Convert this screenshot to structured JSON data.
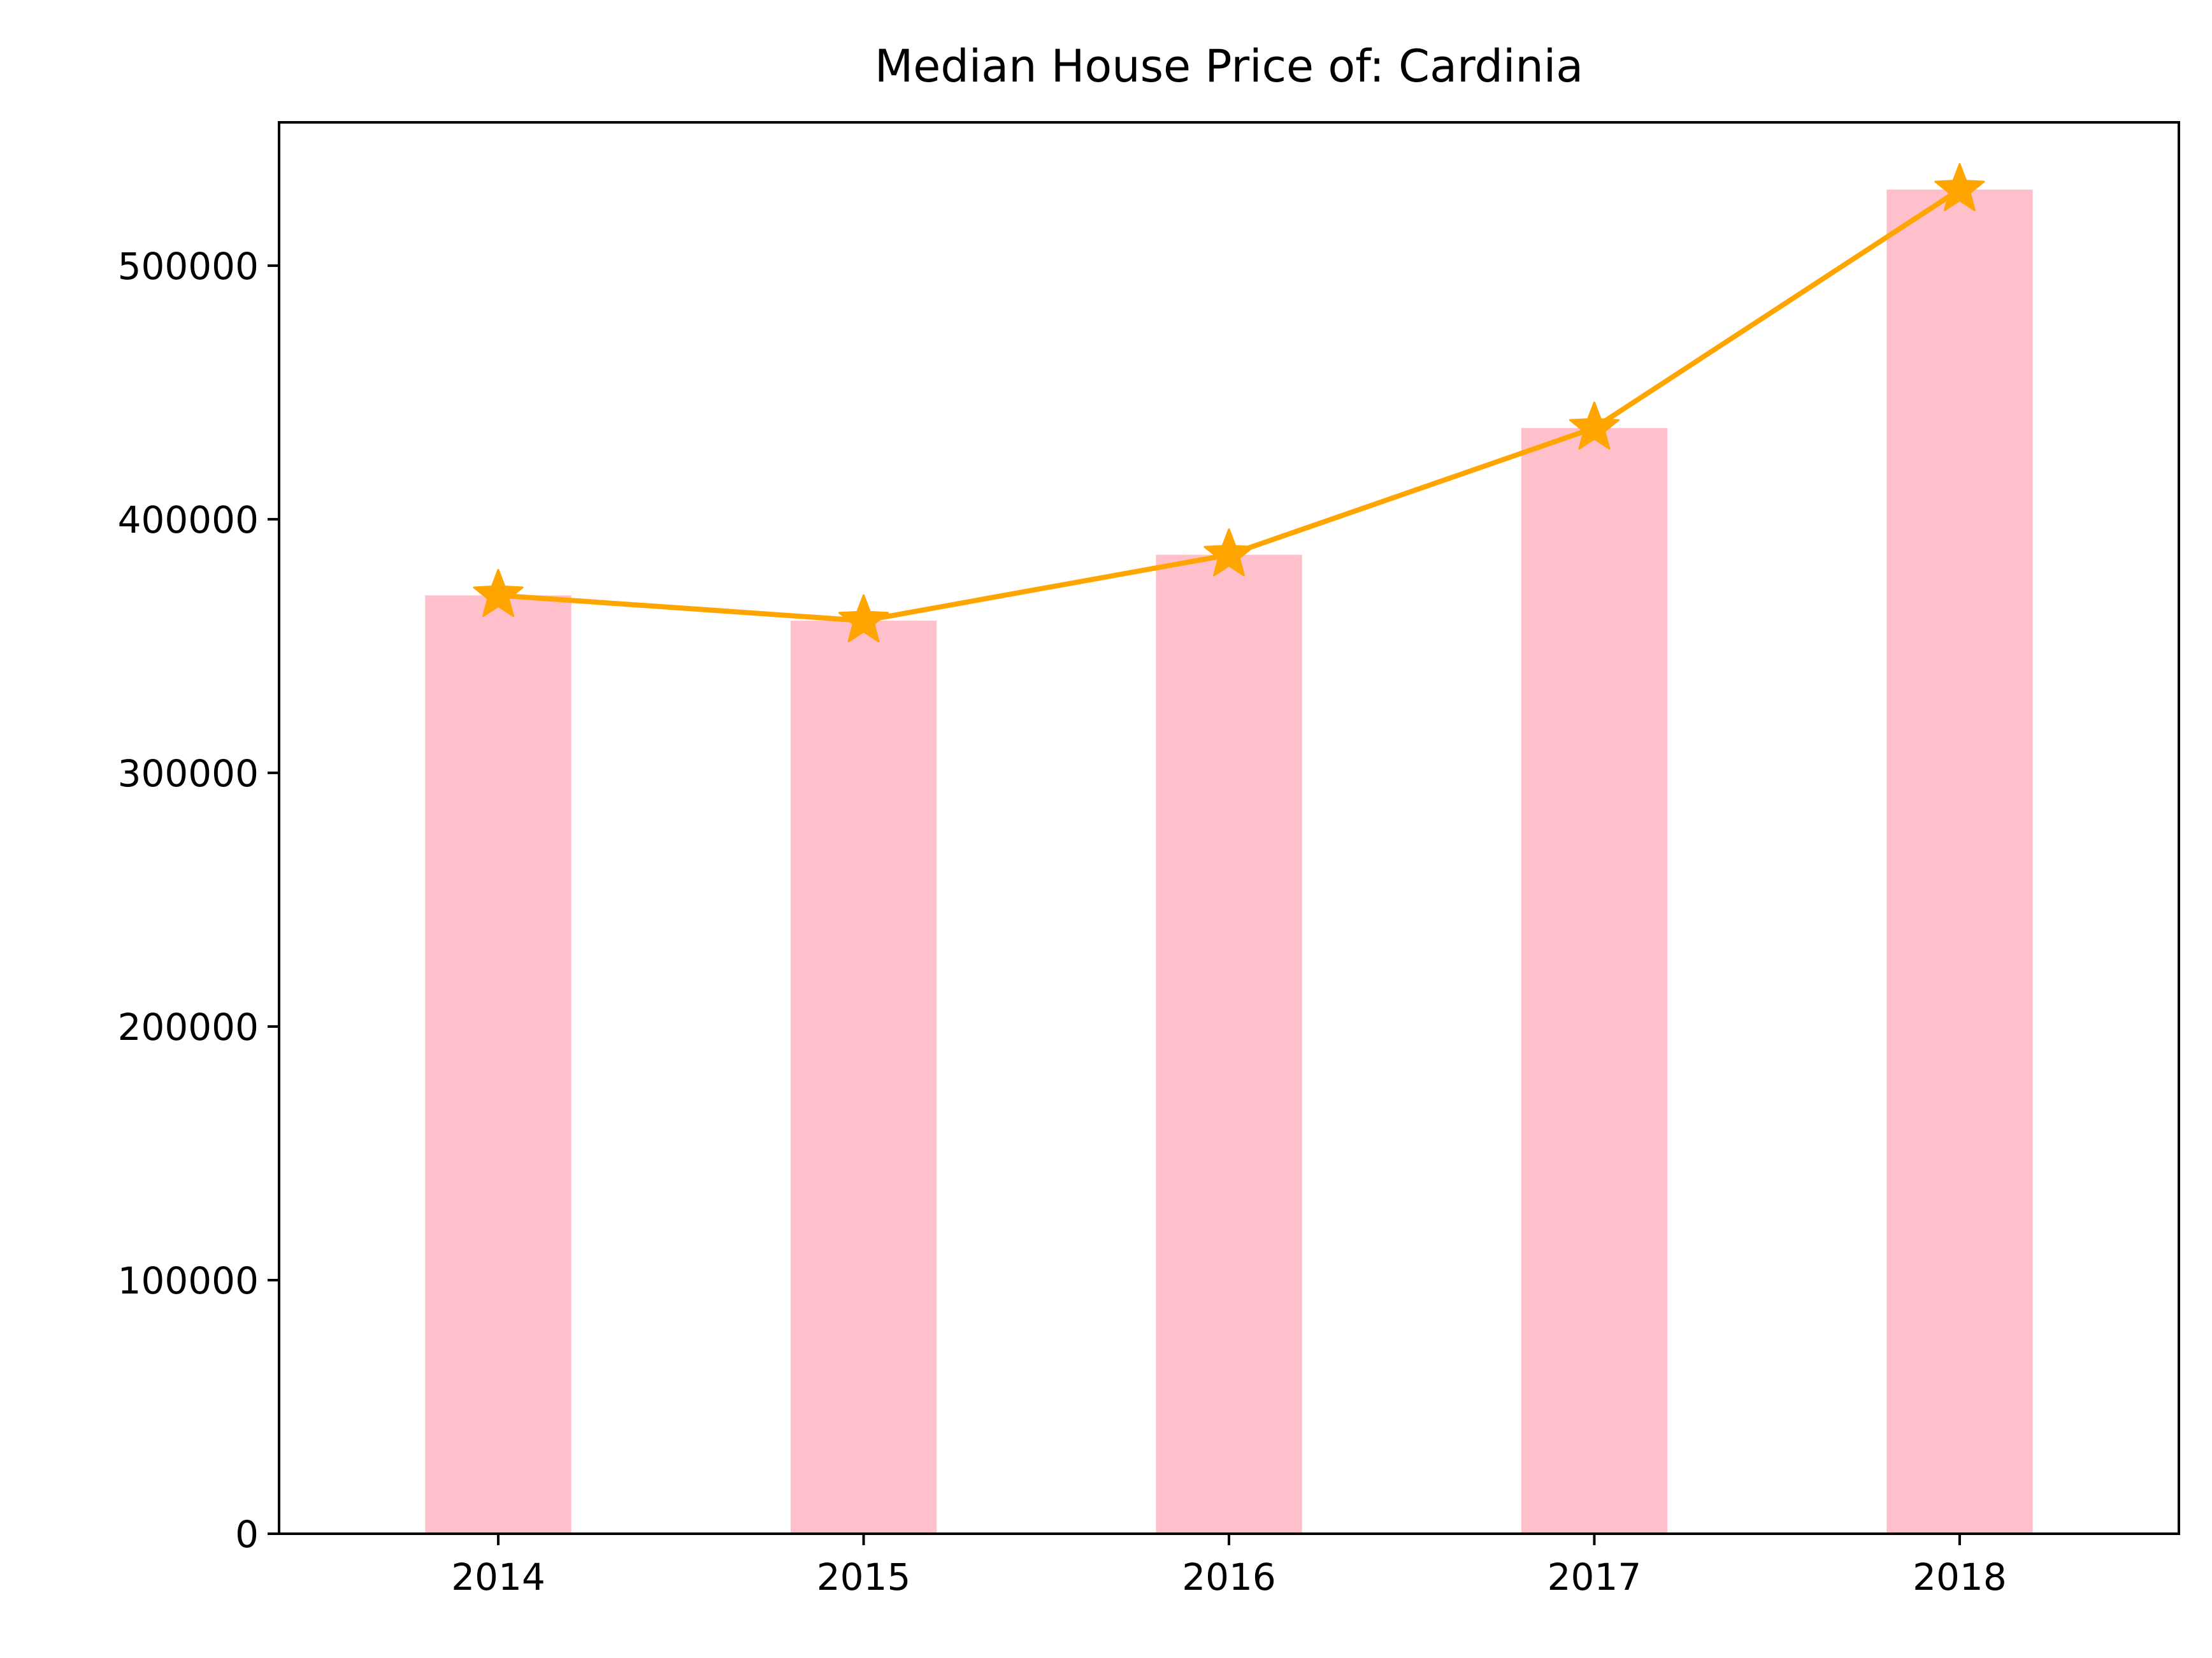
{
  "colors": {
    "bar": "#ffc0cb",
    "line": "#ffa500",
    "axis": "#000000",
    "background": "#ffffff"
  },
  "chart_data": {
    "type": "bar",
    "title": "Median House Price of: Cardinia",
    "xlabel": "",
    "ylabel": "",
    "categories": [
      "2014",
      "2015",
      "2016",
      "2017",
      "2018"
    ],
    "series": [
      {
        "type": "bar",
        "values": [
          370000,
          360000,
          386000,
          436000,
          530000
        ],
        "color": "#ffc0cb"
      },
      {
        "type": "line",
        "marker": "star",
        "values": [
          370000,
          360000,
          386000,
          436000,
          530000
        ],
        "color": "#ffa500"
      }
    ],
    "yticks": [
      0,
      100000,
      200000,
      300000,
      400000,
      500000
    ],
    "ytick_labels": [
      "0",
      "100000",
      "200000",
      "300000",
      "400000",
      "500000"
    ],
    "ylim": [
      0,
      556500
    ],
    "grid": false,
    "legend": "none"
  }
}
